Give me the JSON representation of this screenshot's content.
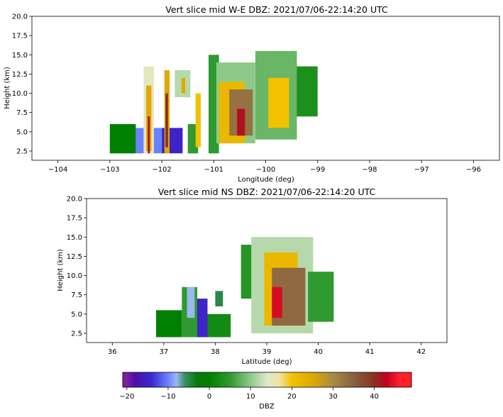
{
  "colors": {
    "background": "#ffffff",
    "axis": "#000000",
    "dbz_stops": [
      [
        -20,
        "#7a1fa0"
      ],
      [
        -18,
        "#4b0fa8"
      ],
      [
        -14,
        "#3a2ad0"
      ],
      [
        -10,
        "#6a82ff"
      ],
      [
        -8,
        "#9bb8f0"
      ],
      [
        -6,
        "#3c8f6a"
      ],
      [
        -3,
        "#0a7a0a"
      ],
      [
        0,
        "#008000"
      ],
      [
        5,
        "#2f9a2f"
      ],
      [
        10,
        "#8fc98a"
      ],
      [
        14,
        "#dde9cc"
      ],
      [
        17,
        "#f2e2a0"
      ],
      [
        20,
        "#f2c200"
      ],
      [
        25,
        "#e0a800"
      ],
      [
        30,
        "#a88a45"
      ],
      [
        35,
        "#8a6040"
      ],
      [
        40,
        "#8a3020"
      ],
      [
        43,
        "#c40020"
      ],
      [
        46,
        "#ff2030"
      ],
      [
        49,
        "#ff2020"
      ]
    ]
  },
  "chart_data": [
    {
      "type": "heatmap",
      "title": "Vert slice mid W-E DBZ: 2021/07/06-22:14:20 UTC",
      "xlabel": "Longitude (deg)",
      "ylabel": "Height (km)",
      "xlim": [
        -104.5,
        -95.5
      ],
      "ylim": [
        1.3,
        20.0
      ],
      "xticks": [
        "−104",
        "−103",
        "−102",
        "−101",
        "−100",
        "−99",
        "−98",
        "−97",
        "−96"
      ],
      "xtick_values": [
        -104,
        -103,
        -102,
        -101,
        -100,
        -99,
        -98,
        -97,
        -96
      ],
      "yticks": [
        "2.5",
        "5.0",
        "7.5",
        "10.0",
        "12.5",
        "15.0",
        "17.5",
        "20.0"
      ],
      "ytick_values": [
        2.5,
        5.0,
        7.5,
        10.0,
        12.5,
        15.0,
        17.5,
        20.0
      ],
      "cells": [
        [
          -103.0,
          -102.5,
          2.2,
          6.0,
          0
        ],
        [
          -102.5,
          -102.0,
          2.2,
          5.5,
          -10
        ],
        [
          -102.35,
          -102.15,
          2.2,
          13.5,
          15
        ],
        [
          -102.3,
          -102.2,
          2.5,
          11.0,
          25
        ],
        [
          -102.27,
          -102.23,
          2.2,
          7.0,
          42
        ],
        [
          -102.0,
          -101.6,
          2.2,
          5.5,
          -15
        ],
        [
          -101.95,
          -101.85,
          2.2,
          13.0,
          25
        ],
        [
          -101.93,
          -101.88,
          3.0,
          10.0,
          40
        ],
        [
          -101.75,
          -101.45,
          9.5,
          13.0,
          12
        ],
        [
          -101.62,
          -101.55,
          10.0,
          12.0,
          25
        ],
        [
          -101.5,
          -101.3,
          2.2,
          6.0,
          5
        ],
        [
          -101.35,
          -101.25,
          3.0,
          10.0,
          20
        ],
        [
          -101.1,
          -100.9,
          2.2,
          15.0,
          5
        ],
        [
          -100.95,
          -100.2,
          3.5,
          14.0,
          10
        ],
        [
          -100.9,
          -100.4,
          3.5,
          11.5,
          22
        ],
        [
          -100.7,
          -100.25,
          4.5,
          10.5,
          33
        ],
        [
          -100.55,
          -100.4,
          4.5,
          8.0,
          42
        ],
        [
          -100.2,
          -99.4,
          4.0,
          15.5,
          8
        ],
        [
          -99.95,
          -99.55,
          5.5,
          12.0,
          20
        ],
        [
          -99.4,
          -99.0,
          7.0,
          13.5,
          3
        ]
      ]
    },
    {
      "type": "heatmap",
      "title": "Vert slice mid NS DBZ: 2021/07/06-22:14:20 UTC",
      "xlabel": "Latitude (deg)",
      "ylabel": "Height (km)",
      "xlim": [
        35.5,
        42.5
      ],
      "ylim": [
        1.3,
        20.0
      ],
      "xticks": [
        "36",
        "37",
        "38",
        "39",
        "40",
        "41",
        "42"
      ],
      "xtick_values": [
        36,
        37,
        38,
        39,
        40,
        41,
        42
      ],
      "yticks": [
        "2.5",
        "5.0",
        "7.5",
        "10.0",
        "12.5",
        "15.0",
        "17.5",
        "20.0"
      ],
      "ytick_values": [
        2.5,
        5.0,
        7.5,
        10.0,
        12.5,
        15.0,
        17.5,
        20.0
      ],
      "cells": [
        [
          36.85,
          37.35,
          2.0,
          5.5,
          0
        ],
        [
          37.35,
          37.65,
          2.0,
          8.5,
          5
        ],
        [
          37.45,
          37.6,
          4.5,
          8.5,
          -8
        ],
        [
          37.65,
          37.85,
          2.0,
          7.0,
          -15
        ],
        [
          37.85,
          38.3,
          2.0,
          5.0,
          2
        ],
        [
          38.0,
          38.15,
          6.0,
          8.0,
          -5
        ],
        [
          38.5,
          39.0,
          7.0,
          14.0,
          4
        ],
        [
          38.7,
          39.9,
          2.5,
          15.0,
          12
        ],
        [
          38.95,
          39.6,
          3.5,
          13.0,
          22
        ],
        [
          39.1,
          39.75,
          3.5,
          11.0,
          34
        ],
        [
          39.1,
          39.3,
          4.5,
          8.5,
          44
        ],
        [
          39.8,
          40.3,
          4.0,
          10.5,
          5
        ]
      ]
    }
  ],
  "colorbar": {
    "label": "DBZ",
    "range": [
      -21,
      49
    ],
    "ticks": [
      "−20",
      "−10",
      "0",
      "10",
      "20",
      "30",
      "40"
    ],
    "tick_values": [
      -20,
      -10,
      0,
      10,
      20,
      30,
      40
    ]
  }
}
